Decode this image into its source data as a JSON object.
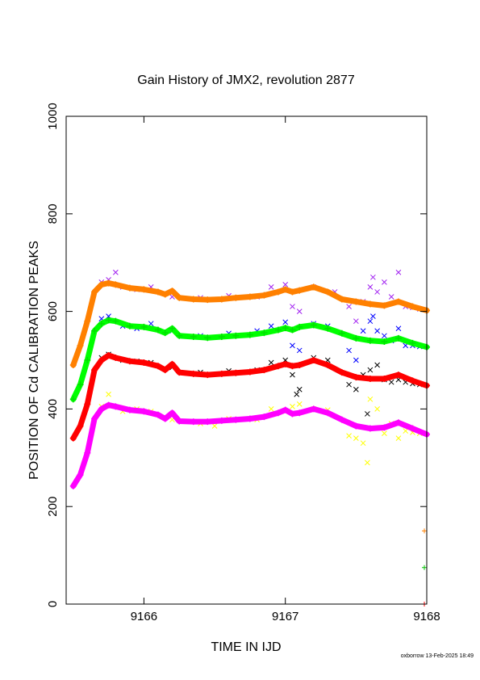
{
  "chart_data": {
    "type": "scatter",
    "title": "Gain History of JMX2, revolution 2877",
    "xlabel": "TIME IN IJD",
    "ylabel": "POSITION OF Cd CALIBRATION PEAKS",
    "xlim": [
      9165.45,
      9168.0
    ],
    "ylim": [
      0,
      1000
    ],
    "x_ticks": [
      9166,
      9167,
      9168
    ],
    "y_ticks": [
      0,
      200,
      400,
      600,
      800,
      1000
    ],
    "grid": false,
    "legend": "none",
    "series": [
      {
        "color": "#ff8000",
        "line_color": "#ff8000",
        "scatter_color": "#a020f0",
        "points": [
          [
            9165.5,
            490
          ],
          [
            9165.55,
            530
          ],
          [
            9165.6,
            580
          ],
          [
            9165.65,
            640
          ],
          [
            9165.7,
            655
          ],
          [
            9165.75,
            658
          ],
          [
            9165.8,
            655
          ],
          [
            9165.9,
            648
          ],
          [
            9166.0,
            645
          ],
          [
            9166.1,
            640
          ],
          [
            9166.15,
            635
          ],
          [
            9166.2,
            642
          ],
          [
            9166.25,
            628
          ],
          [
            9166.35,
            625
          ],
          [
            9166.45,
            624
          ],
          [
            9166.55,
            625
          ],
          [
            9166.65,
            628
          ],
          [
            9166.75,
            630
          ],
          [
            9166.85,
            633
          ],
          [
            9166.95,
            640
          ],
          [
            9167.0,
            645
          ],
          [
            9167.05,
            640
          ],
          [
            9167.1,
            643
          ],
          [
            9167.2,
            650
          ],
          [
            9167.3,
            640
          ],
          [
            9167.4,
            625
          ],
          [
            9167.5,
            620
          ],
          [
            9167.6,
            615
          ],
          [
            9167.7,
            612
          ],
          [
            9167.8,
            620
          ],
          [
            9167.9,
            610
          ],
          [
            9168.0,
            602
          ]
        ],
        "scatter": [
          [
            9165.7,
            660
          ],
          [
            9165.75,
            665
          ],
          [
            9165.8,
            680
          ],
          [
            9165.85,
            650
          ],
          [
            9165.95,
            645
          ],
          [
            9166.05,
            650
          ],
          [
            9166.2,
            630
          ],
          [
            9166.4,
            628
          ],
          [
            9166.6,
            632
          ],
          [
            9166.8,
            630
          ],
          [
            9166.9,
            650
          ],
          [
            9167.0,
            655
          ],
          [
            9167.05,
            610
          ],
          [
            9167.1,
            600
          ],
          [
            9167.2,
            650
          ],
          [
            9167.35,
            640
          ],
          [
            9167.45,
            610
          ],
          [
            9167.5,
            580
          ],
          [
            9167.55,
            620
          ],
          [
            9167.6,
            650
          ],
          [
            9167.62,
            670
          ],
          [
            9167.65,
            640
          ],
          [
            9167.7,
            660
          ],
          [
            9167.75,
            630
          ],
          [
            9167.8,
            680
          ],
          [
            9167.85,
            610
          ],
          [
            9167.9,
            608
          ],
          [
            9167.95,
            605
          ]
        ]
      },
      {
        "color": "#00e000",
        "line_color": "#00ff00",
        "scatter_color": "#0000ff",
        "points": [
          [
            9165.5,
            420
          ],
          [
            9165.55,
            450
          ],
          [
            9165.6,
            500
          ],
          [
            9165.65,
            560
          ],
          [
            9165.7,
            575
          ],
          [
            9165.75,
            582
          ],
          [
            9165.8,
            580
          ],
          [
            9165.9,
            570
          ],
          [
            9166.0,
            568
          ],
          [
            9166.1,
            562
          ],
          [
            9166.15,
            556
          ],
          [
            9166.2,
            565
          ],
          [
            9166.25,
            550
          ],
          [
            9166.35,
            548
          ],
          [
            9166.45,
            546
          ],
          [
            9166.55,
            548
          ],
          [
            9166.65,
            550
          ],
          [
            9166.75,
            552
          ],
          [
            9166.85,
            556
          ],
          [
            9166.95,
            562
          ],
          [
            9167.0,
            566
          ],
          [
            9167.05,
            562
          ],
          [
            9167.1,
            568
          ],
          [
            9167.2,
            572
          ],
          [
            9167.3,
            565
          ],
          [
            9167.4,
            555
          ],
          [
            9167.5,
            545
          ],
          [
            9167.6,
            540
          ],
          [
            9167.7,
            538
          ],
          [
            9167.8,
            545
          ],
          [
            9167.9,
            535
          ],
          [
            9168.0,
            527
          ]
        ],
        "scatter": [
          [
            9165.7,
            585
          ],
          [
            9165.75,
            590
          ],
          [
            9165.85,
            570
          ],
          [
            9165.95,
            565
          ],
          [
            9166.05,
            575
          ],
          [
            9166.2,
            560
          ],
          [
            9166.4,
            550
          ],
          [
            9166.6,
            555
          ],
          [
            9166.8,
            560
          ],
          [
            9166.9,
            570
          ],
          [
            9167.0,
            578
          ],
          [
            9167.05,
            530
          ],
          [
            9167.1,
            520
          ],
          [
            9167.2,
            575
          ],
          [
            9167.3,
            570
          ],
          [
            9167.45,
            520
          ],
          [
            9167.5,
            500
          ],
          [
            9167.55,
            560
          ],
          [
            9167.6,
            580
          ],
          [
            9167.62,
            590
          ],
          [
            9167.65,
            560
          ],
          [
            9167.7,
            550
          ],
          [
            9167.75,
            540
          ],
          [
            9167.8,
            565
          ],
          [
            9167.85,
            530
          ],
          [
            9167.9,
            530
          ],
          [
            9167.95,
            528
          ]
        ]
      },
      {
        "color": "#ff0000",
        "line_color": "#ff0000",
        "scatter_color": "#000000",
        "points": [
          [
            9165.5,
            340
          ],
          [
            9165.55,
            365
          ],
          [
            9165.6,
            410
          ],
          [
            9165.65,
            480
          ],
          [
            9165.7,
            500
          ],
          [
            9165.75,
            510
          ],
          [
            9165.8,
            505
          ],
          [
            9165.9,
            498
          ],
          [
            9166.0,
            495
          ],
          [
            9166.1,
            488
          ],
          [
            9166.15,
            480
          ],
          [
            9166.2,
            492
          ],
          [
            9166.25,
            475
          ],
          [
            9166.35,
            472
          ],
          [
            9166.45,
            470
          ],
          [
            9166.55,
            472
          ],
          [
            9166.65,
            474
          ],
          [
            9166.75,
            476
          ],
          [
            9166.85,
            480
          ],
          [
            9166.95,
            488
          ],
          [
            9167.0,
            492
          ],
          [
            9167.05,
            488
          ],
          [
            9167.1,
            490
          ],
          [
            9167.2,
            500
          ],
          [
            9167.3,
            490
          ],
          [
            9167.4,
            475
          ],
          [
            9167.5,
            465
          ],
          [
            9167.6,
            462
          ],
          [
            9167.7,
            462
          ],
          [
            9167.8,
            470
          ],
          [
            9167.9,
            458
          ],
          [
            9168.0,
            448
          ]
        ],
        "scatter": [
          [
            9165.7,
            505
          ],
          [
            9165.75,
            512
          ],
          [
            9165.85,
            500
          ],
          [
            9165.95,
            498
          ],
          [
            9166.05,
            495
          ],
          [
            9166.2,
            485
          ],
          [
            9166.4,
            475
          ],
          [
            9166.6,
            478
          ],
          [
            9166.8,
            480
          ],
          [
            9166.9,
            495
          ],
          [
            9167.0,
            500
          ],
          [
            9167.05,
            470
          ],
          [
            9167.08,
            430
          ],
          [
            9167.1,
            440
          ],
          [
            9167.2,
            505
          ],
          [
            9167.3,
            500
          ],
          [
            9167.45,
            450
          ],
          [
            9167.5,
            440
          ],
          [
            9167.55,
            470
          ],
          [
            9167.58,
            390
          ],
          [
            9167.6,
            480
          ],
          [
            9167.65,
            490
          ],
          [
            9167.7,
            460
          ],
          [
            9167.75,
            455
          ],
          [
            9167.8,
            460
          ],
          [
            9167.85,
            455
          ],
          [
            9167.9,
            452
          ],
          [
            9167.95,
            450
          ]
        ]
      },
      {
        "color": "#ff00ff",
        "line_color": "#ff00ff",
        "scatter_color": "#ffff00",
        "points": [
          [
            9165.5,
            242
          ],
          [
            9165.55,
            265
          ],
          [
            9165.6,
            310
          ],
          [
            9165.65,
            380
          ],
          [
            9165.7,
            400
          ],
          [
            9165.75,
            408
          ],
          [
            9165.8,
            405
          ],
          [
            9165.9,
            398
          ],
          [
            9166.0,
            395
          ],
          [
            9166.1,
            388
          ],
          [
            9166.15,
            380
          ],
          [
            9166.2,
            392
          ],
          [
            9166.25,
            375
          ],
          [
            9166.35,
            374
          ],
          [
            9166.45,
            374
          ],
          [
            9166.55,
            376
          ],
          [
            9166.65,
            378
          ],
          [
            9166.75,
            380
          ],
          [
            9166.85,
            384
          ],
          [
            9166.95,
            392
          ],
          [
            9167.0,
            398
          ],
          [
            9167.05,
            390
          ],
          [
            9167.1,
            392
          ],
          [
            9167.2,
            400
          ],
          [
            9167.3,
            392
          ],
          [
            9167.4,
            378
          ],
          [
            9167.5,
            365
          ],
          [
            9167.6,
            360
          ],
          [
            9167.7,
            362
          ],
          [
            9167.8,
            372
          ],
          [
            9167.9,
            360
          ],
          [
            9168.0,
            348
          ]
        ],
        "scatter": [
          [
            9165.7,
            405
          ],
          [
            9165.75,
            430
          ],
          [
            9165.85,
            395
          ],
          [
            9165.95,
            400
          ],
          [
            9166.05,
            395
          ],
          [
            9166.2,
            378
          ],
          [
            9166.4,
            370
          ],
          [
            9166.5,
            365
          ],
          [
            9166.6,
            380
          ],
          [
            9166.8,
            378
          ],
          [
            9166.9,
            400
          ],
          [
            9167.0,
            395
          ],
          [
            9167.05,
            405
          ],
          [
            9167.1,
            410
          ],
          [
            9167.2,
            400
          ],
          [
            9167.3,
            398
          ],
          [
            9167.45,
            345
          ],
          [
            9167.5,
            340
          ],
          [
            9167.55,
            330
          ],
          [
            9167.58,
            290
          ],
          [
            9167.6,
            420
          ],
          [
            9167.65,
            400
          ],
          [
            9167.7,
            350
          ],
          [
            9167.75,
            370
          ],
          [
            9167.8,
            340
          ],
          [
            9167.85,
            355
          ],
          [
            9167.9,
            352
          ],
          [
            9167.95,
            350
          ]
        ]
      }
    ],
    "edge_markers": [
      {
        "x": 9168.0,
        "y": 150,
        "color": "#ff8000"
      },
      {
        "x": 9168.0,
        "y": 75,
        "color": "#00c000"
      },
      {
        "x": 9168.0,
        "y": 0,
        "color": "#ff0000"
      }
    ]
  },
  "footer": "oxborrow 13-Feb-2025 18:49"
}
